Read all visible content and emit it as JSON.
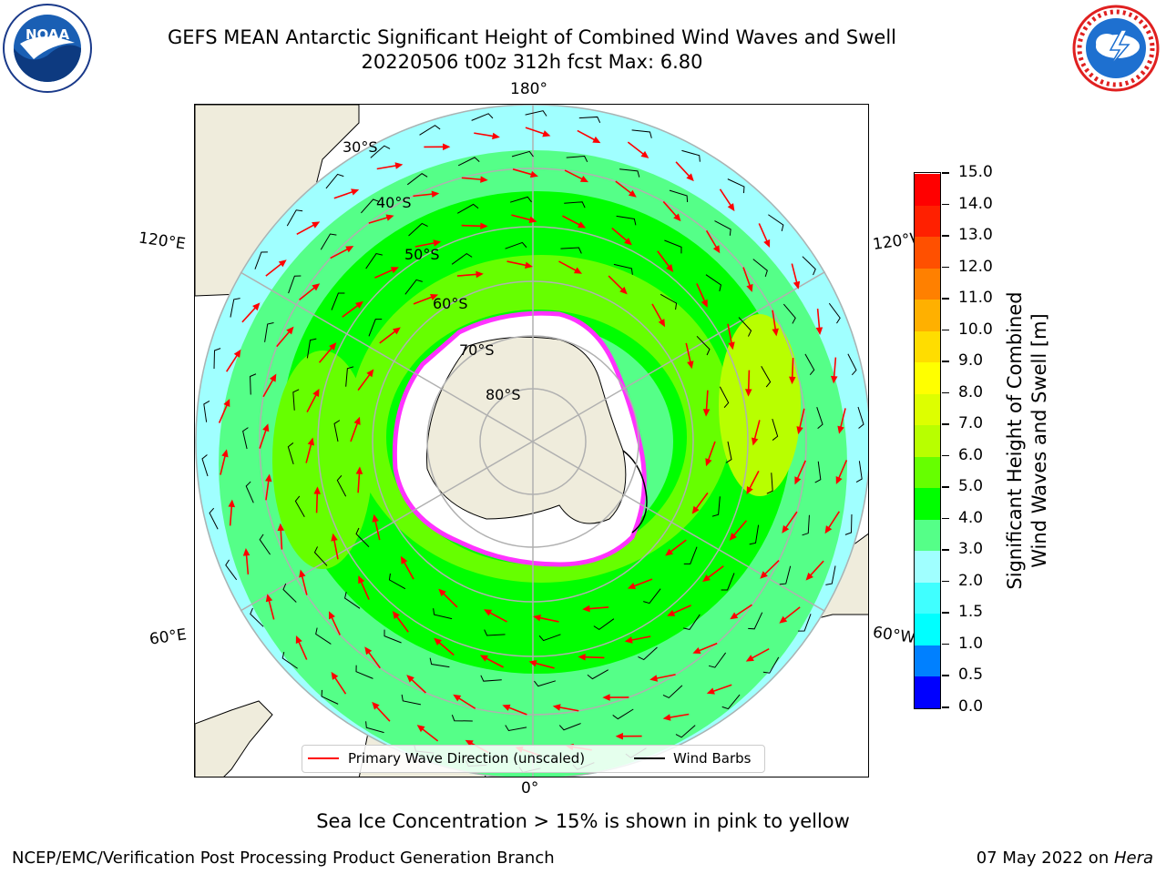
{
  "header": {
    "title_line1": "GEFS MEAN Antarctic Significant Height of Combined Wind Waves and Swell",
    "title_line2": "20220506 t00z 312h fcst   Max: 6.80"
  },
  "logos": {
    "left": {
      "icon": "noaa-logo-icon",
      "text": "NOAA",
      "ring_text": "NATIONAL OCEANIC AND ATMOSPHERIC ADMINISTRATION · U.S. DEPARTMENT OF COMMERCE"
    },
    "right": {
      "icon": "nws-logo-icon",
      "ring_text": "NATIONAL WEATHER SERVICE"
    }
  },
  "map": {
    "projection": "south polar stereographic",
    "longitude_labels": {
      "top": "180°",
      "bottom": "0°",
      "left_upper": "120°E",
      "left_lower": "60°E",
      "right_upper": "120°W",
      "right_lower": "60°W"
    },
    "latitude_labels": [
      "30°S",
      "40°S",
      "50°S",
      "60°S",
      "70°S",
      "80°S"
    ],
    "colors": {
      "land": "#efecdc",
      "ice_edge": "#ff33ff",
      "grid": "#b0b0b0",
      "arrow": "#ff0000",
      "barb": "#000000"
    }
  },
  "legend": {
    "primary_wave_label": "Primary Wave Direction (unscaled)",
    "primary_wave_color": "#ff0000",
    "wind_barbs_label": "Wind Barbs",
    "wind_barbs_color": "#000000"
  },
  "colorbar": {
    "label_line1": "Significant Height of Combined",
    "label_line2": "Wind Waves and Swell [m]",
    "ticks": [
      "0.0",
      "0.5",
      "1.0",
      "1.5",
      "2.0",
      "3.0",
      "4.0",
      "5.0",
      "6.0",
      "7.0",
      "8.0",
      "9.0",
      "10.0",
      "11.0",
      "12.0",
      "13.0",
      "14.0",
      "15.0"
    ],
    "colors": [
      "#0000ff",
      "#0080ff",
      "#00ffff",
      "#40ffff",
      "#a0ffff",
      "#55ff88",
      "#00ff00",
      "#66ff00",
      "#b8ff00",
      "#ddff00",
      "#ffff00",
      "#ffdd00",
      "#ffb000",
      "#ff8000",
      "#ff5000",
      "#ff2000",
      "#ff0000"
    ]
  },
  "footer": {
    "subtitle": "Sea Ice Concentration > 15% is shown in pink to yellow",
    "left": "NCEP/EMC/Verification Post Processing Product Generation Branch",
    "right_date": "07 May 2022 on ",
    "right_host": "Hera"
  }
}
